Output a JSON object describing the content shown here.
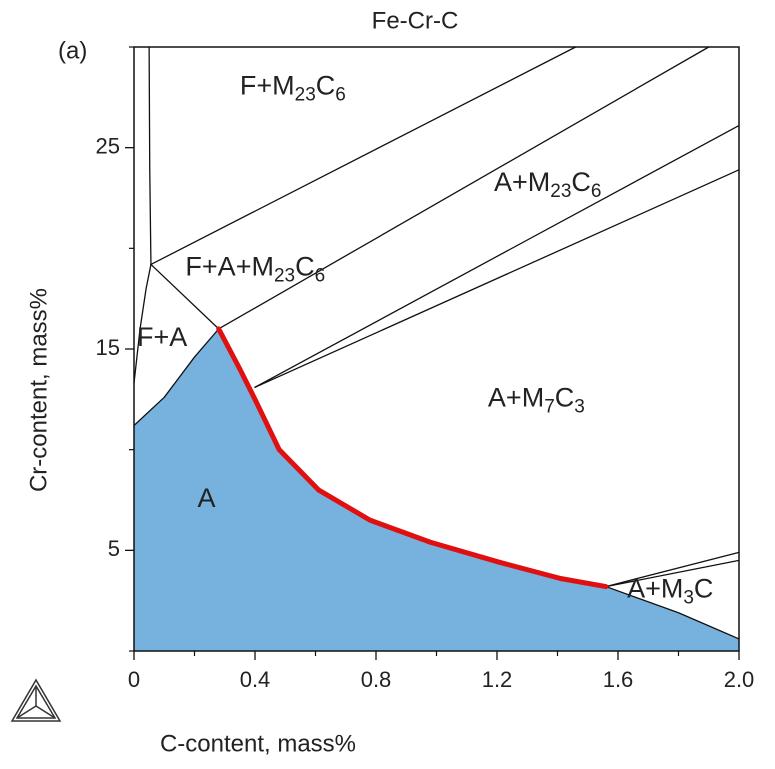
{
  "chart_data": {
    "type": "phase-diagram",
    "title": "Fe-Cr-C",
    "panel_label": "(a)",
    "x_label": "C-content, mass%",
    "y_label": "Cr-content, mass%",
    "xlim": [
      0,
      2
    ],
    "ylim": [
      0,
      30
    ],
    "xticks": [
      0,
      0.4,
      0.8,
      1.2,
      1.6,
      {
        "value": 2,
        "label": "2.0"
      }
    ],
    "xminor_ticks": [
      0.2,
      0.6,
      1.0,
      1.4,
      1.8
    ],
    "yticks": [
      5,
      15,
      25
    ],
    "yminor_ticks": [
      0,
      10,
      20,
      30
    ],
    "area": {
      "color": "#77b1de",
      "x": [
        0,
        0.1,
        0.2,
        0.28,
        0.35,
        0.4,
        0.48,
        0.61,
        0.78,
        0.98,
        1.21,
        1.41,
        1.56,
        1.8,
        2.0,
        2.0,
        0
      ],
      "y": [
        11.2,
        12.6,
        14.6,
        16,
        14,
        12.5,
        10,
        8,
        6.5,
        5.4,
        4.4,
        3.6,
        3.2,
        1.9,
        0.6,
        0,
        0
      ]
    },
    "lines": [
      {
        "color": "#111",
        "x": [
          0.05,
          0.052,
          0.056
        ],
        "y": [
          30,
          24,
          19.2
        ]
      },
      {
        "color": "#111",
        "x": [
          0.056,
          0.28
        ],
        "y": [
          19.2,
          16
        ]
      },
      {
        "color": "#111",
        "x": [
          0,
          0.02,
          0.04,
          0.056
        ],
        "y": [
          13.3,
          16,
          18,
          19.2
        ]
      },
      {
        "color": "#111",
        "x": [
          0.056,
          1.46
        ],
        "y": [
          19.2,
          30
        ]
      },
      {
        "color": "#111",
        "x": [
          0.28,
          1.9
        ],
        "y": [
          16,
          30
        ]
      },
      {
        "color": "#111",
        "x": [
          0.4,
          2.0
        ],
        "y": [
          13.1,
          26.1
        ]
      },
      {
        "color": "#111",
        "x": [
          0.4,
          2.0
        ],
        "y": [
          13.1,
          23.9
        ]
      },
      {
        "color": "#111",
        "x": [
          0,
          0.1,
          0.2,
          0.28
        ],
        "y": [
          11.2,
          12.6,
          14.6,
          16
        ]
      },
      {
        "color": "#111",
        "x": [
          1.56,
          2.0
        ],
        "y": [
          3.2,
          4.9
        ]
      },
      {
        "color": "#111",
        "x": [
          1.56,
          2.0
        ],
        "y": [
          3.2,
          4.5
        ]
      },
      {
        "color": "#111",
        "x": [
          1.56,
          1.8,
          2.0
        ],
        "y": [
          3.2,
          1.9,
          0.6
        ]
      },
      {
        "color": "#e01010",
        "x": [
          0.28,
          0.35,
          0.4,
          0.48,
          0.61,
          0.78,
          0.98,
          1.21,
          1.41,
          1.56
        ],
        "y": [
          16,
          14,
          12.5,
          10,
          8,
          6.5,
          5.4,
          4.4,
          3.6,
          3.2
        ]
      }
    ],
    "annotations": [
      {
        "text": [
          "F+M",
          "23",
          "C",
          "6"
        ],
        "x": 0.35,
        "y": 28.0
      },
      {
        "text": [
          "A+M",
          "23",
          "C",
          "6"
        ],
        "x": 1.19,
        "y": 23.2
      },
      {
        "text": [
          "F+A+M",
          "23",
          "C",
          "6"
        ],
        "x": 0.17,
        "y": 19.0
      },
      {
        "text": [
          "F+A"
        ],
        "x": 0.01,
        "y": 15.5
      },
      {
        "text": [
          "A+M",
          "7",
          "C",
          "3"
        ],
        "x": 1.17,
        "y": 12.5
      },
      {
        "text": [
          "A"
        ],
        "x": 0.21,
        "y": 7.5
      },
      {
        "text": [
          "A+M",
          "3",
          "C"
        ],
        "x": 1.63,
        "y": 3.0
      }
    ]
  }
}
